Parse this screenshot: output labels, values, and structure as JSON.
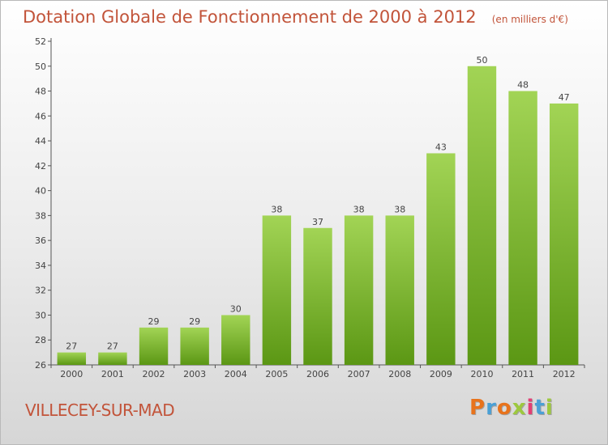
{
  "header": {
    "title": "Dotation Globale de Fonctionnement de 2000 à 2012",
    "unit_note": "(en milliers d'€)"
  },
  "footer": {
    "commune": "VILLECEY-SUR-MAD",
    "logo_text": "Proxiti",
    "logo_colors": [
      "#e8731c",
      "#4aa0d6",
      "#e8731c",
      "#9dc83e",
      "#e23f74",
      "#4aa0d6",
      "#9dc83e"
    ]
  },
  "colors": {
    "title": "#c2543a",
    "bar_top": "#a2d455",
    "bar_bottom": "#5b9714",
    "axis": "#555555"
  },
  "chart_data": {
    "type": "bar",
    "title": "Dotation Globale de Fonctionnement de 2000 à 2012",
    "subtitle": "(en milliers d'€)",
    "categories": [
      "2000",
      "2001",
      "2002",
      "2003",
      "2004",
      "2005",
      "2006",
      "2007",
      "2008",
      "2009",
      "2010",
      "2011",
      "2012"
    ],
    "values": [
      27,
      27,
      29,
      29,
      30,
      38,
      37,
      38,
      38,
      43,
      50,
      48,
      47
    ],
    "data_labels": [
      "27",
      "27",
      "29",
      "29",
      "30",
      "38",
      "37",
      "38",
      "38",
      "43",
      "50",
      "48",
      "47"
    ],
    "ylim": [
      26,
      52
    ],
    "yticks": [
      26,
      28,
      30,
      32,
      34,
      36,
      38,
      40,
      42,
      44,
      46,
      48,
      50,
      52
    ],
    "xlabel": "",
    "ylabel": "",
    "grid": false,
    "legend": "none"
  }
}
